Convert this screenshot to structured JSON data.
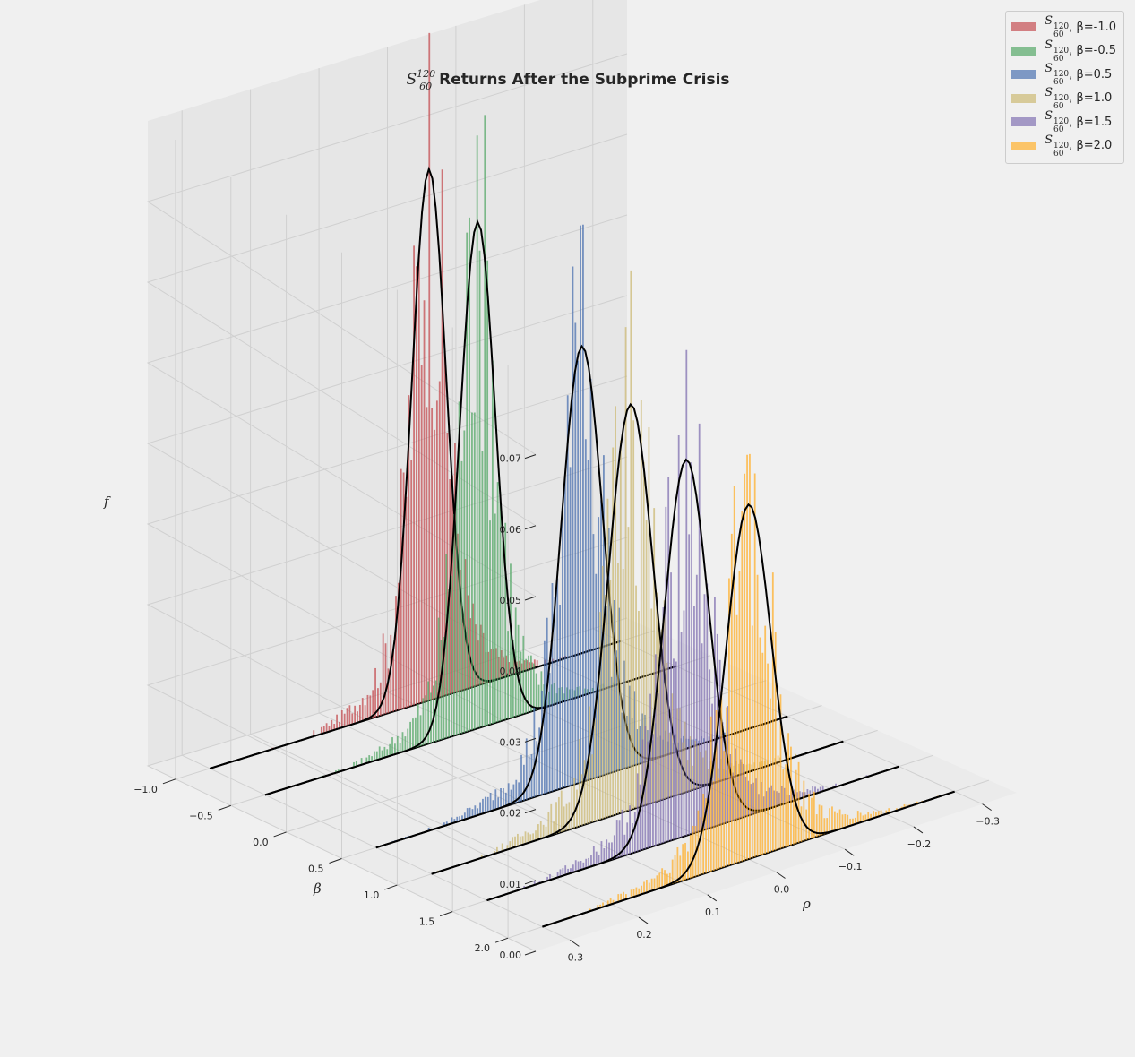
{
  "chart_data": {
    "type": "3d-histogram",
    "title": {
      "math_base": "S",
      "math_sub": "60",
      "math_sup": "120",
      "text": "Returns After the Subprime Crisis"
    },
    "axes": {
      "x": {
        "label": "ρ",
        "range": [
          -0.35,
          0.35
        ],
        "ticks": [
          "−0.3",
          "−0.2",
          "−0.1",
          "0.0",
          "0.1",
          "0.2",
          "0.3"
        ],
        "tick_values": [
          -0.3,
          -0.2,
          -0.1,
          0.0,
          0.1,
          0.2,
          0.3
        ]
      },
      "y": {
        "label": "β",
        "range": [
          -1.25,
          2.25
        ],
        "ticks": [
          "−1.0",
          "−0.5",
          "0.0",
          "0.5",
          "1.0",
          "1.5",
          "2.0"
        ],
        "tick_values": [
          -1.0,
          -0.5,
          0.0,
          0.5,
          1.0,
          1.5,
          2.0
        ]
      },
      "z": {
        "label": "f",
        "range": [
          0,
          0.08
        ],
        "ticks": [
          "0.00",
          "0.01",
          "0.02",
          "0.03",
          "0.04",
          "0.05",
          "0.06",
          "0.07"
        ],
        "tick_values": [
          0,
          0.01,
          0.02,
          0.03,
          0.04,
          0.05,
          0.06,
          0.07
        ]
      }
    },
    "grid": true,
    "legend_position": "top-right",
    "series": [
      {
        "label": "β=-1.0",
        "beta": -1.0,
        "color": "#c44e52",
        "fit_peak": 0.0665,
        "fit_mean": -0.02,
        "fit_std": 0.025,
        "hist_peak": 0.0835
      },
      {
        "label": "β=-0.5",
        "beta": -0.5,
        "color": "#55a868",
        "fit_peak": 0.0645,
        "fit_mean": -0.01,
        "fit_std": 0.026,
        "hist_peak": 0.0755
      },
      {
        "label": "β=0.5",
        "beta": 0.5,
        "color": "#4c72b0",
        "fit_peak": 0.0575,
        "fit_mean": 0.0,
        "fit_std": 0.03,
        "hist_peak": 0.0735
      },
      {
        "label": "β=1.0",
        "beta": 1.0,
        "color": "#ccb974",
        "fit_peak": 0.0545,
        "fit_mean": 0.01,
        "fit_std": 0.032,
        "hist_peak": 0.0725
      },
      {
        "label": "β=1.5",
        "beta": 1.5,
        "color": "#8172b2",
        "fit_peak": 0.0515,
        "fit_mean": 0.01,
        "fit_std": 0.032,
        "hist_peak": 0.0665
      },
      {
        "label": "β=2.0",
        "beta": 2.0,
        "color": "#ffb02e",
        "fit_peak": 0.0495,
        "fit_mean": 0.0,
        "fit_std": 0.033,
        "hist_peak": 0.0565
      }
    ]
  }
}
